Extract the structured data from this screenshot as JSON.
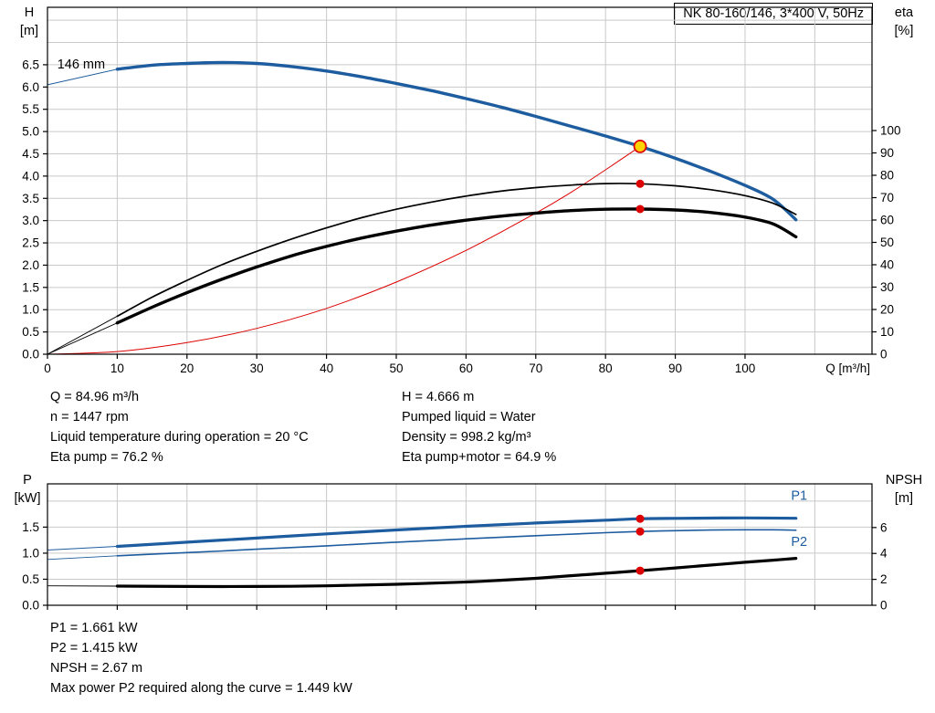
{
  "info_top_left": [
    "Q = 84.96 m³/h",
    "n = 1447 rpm",
    "Liquid temperature during operation = 20 °C",
    "Eta pump = 76.2 %"
  ],
  "info_top_right": [
    "H = 4.666 m",
    "Pumped liquid = Water",
    "Density = 998.2 kg/m³",
    "Eta pump+motor = 64.9 %"
  ],
  "info_bottom": [
    "P1 = 1.661 kW",
    "P2 = 1.415 kW",
    "NPSH = 2.67 m",
    "Max power P2 required along the curve = 1.449 kW"
  ],
  "chart_data": [
    {
      "type": "line",
      "title": "NK 80-160/146, 3*400 V, 50Hz",
      "x": {
        "label": "Q [m³/h]",
        "range": [
          0,
          118.2
        ],
        "ticks": [
          0,
          10,
          20,
          30,
          40,
          50,
          60,
          70,
          80,
          90,
          100
        ],
        "tick_labels": [
          "0",
          "10",
          "20",
          "30",
          "40",
          "50",
          "60",
          "70",
          "80",
          "90",
          "100"
        ],
        "grid": [
          10,
          20,
          30,
          40,
          50,
          60,
          70,
          80,
          90,
          100,
          110
        ]
      },
      "left_axis": {
        "name": "H",
        "unit": "[m]",
        "range": [
          0,
          7.79
        ],
        "ticks": [
          0,
          0.5,
          1,
          1.5,
          2,
          2.5,
          3,
          3.5,
          4,
          4.5,
          5,
          5.5,
          6,
          6.5
        ],
        "tick_labels": [
          "0.0",
          "0.5",
          "1.0",
          "1.5",
          "2.0",
          "2.5",
          "3.0",
          "3.5",
          "4.0",
          "4.5",
          "5.0",
          "5.5",
          "6.0",
          "6.5"
        ],
        "grid": [
          0.5,
          1,
          1.5,
          2,
          2.5,
          3,
          3.5,
          4,
          4.5,
          5,
          5.5,
          6,
          6.5,
          7,
          7.5
        ]
      },
      "right_axis": {
        "name": "eta",
        "unit": "[%]",
        "range": [
          0,
          155.1
        ],
        "ticks": [
          0,
          10,
          20,
          30,
          40,
          50,
          60,
          70,
          80,
          90,
          100
        ],
        "tick_labels": [
          "0",
          "10",
          "20",
          "30",
          "40",
          "50",
          "60",
          "70",
          "80",
          "90",
          "100"
        ]
      },
      "series": [
        {
          "name": "qh-lead",
          "axis": "left",
          "color": "#1d5c9e",
          "width": 1,
          "points": [
            [
              0,
              6.05
            ],
            [
              10,
              6.4
            ]
          ]
        },
        {
          "name": "qh-146mm",
          "axis": "left",
          "color": "#1d5c9e",
          "width": 3.4,
          "points": [
            [
              10,
              6.4
            ],
            [
              15,
              6.49
            ],
            [
              20,
              6.53
            ],
            [
              25,
              6.55
            ],
            [
              30,
              6.53
            ],
            [
              35,
              6.46
            ],
            [
              40,
              6.36
            ],
            [
              45,
              6.23
            ],
            [
              50,
              6.08
            ],
            [
              55,
              5.92
            ],
            [
              60,
              5.74
            ],
            [
              65,
              5.55
            ],
            [
              70,
              5.34
            ],
            [
              75,
              5.12
            ],
            [
              80,
              4.9
            ],
            [
              84.96,
              4.666
            ],
            [
              90,
              4.4
            ],
            [
              95,
              4.11
            ],
            [
              100,
              3.79
            ],
            [
              104,
              3.48
            ],
            [
              107.3,
              3.02
            ]
          ]
        },
        {
          "name": "system-curve",
          "axis": "left",
          "color": "#dd0000",
          "width": 1,
          "points": [
            [
              0,
              0
            ],
            [
              10,
              0.06
            ],
            [
              20,
              0.26
            ],
            [
              30,
              0.58
            ],
            [
              40,
              1.03
            ],
            [
              50,
              1.62
            ],
            [
              60,
              2.33
            ],
            [
              70,
              3.17
            ],
            [
              75,
              3.63
            ],
            [
              80,
              4.14
            ],
            [
              84.96,
              4.666
            ]
          ]
        },
        {
          "name": "eta-pump-lead",
          "axis": "right",
          "color": "#000000",
          "width": 0.9,
          "points": [
            [
              0,
              0
            ],
            [
              10,
              17
            ]
          ]
        },
        {
          "name": "eta-pump",
          "axis": "right",
          "color": "#000000",
          "width": 1.7,
          "points": [
            [
              10,
              17
            ],
            [
              15,
              25.5
            ],
            [
              20,
              33
            ],
            [
              25,
              40
            ],
            [
              30,
              46
            ],
            [
              35,
              51.5
            ],
            [
              40,
              56.5
            ],
            [
              45,
              61
            ],
            [
              50,
              64.8
            ],
            [
              55,
              68
            ],
            [
              60,
              70.7
            ],
            [
              65,
              72.9
            ],
            [
              70,
              74.5
            ],
            [
              75,
              75.6
            ],
            [
              80,
              76.3
            ],
            [
              84.96,
              76.2
            ],
            [
              90,
              75.3
            ],
            [
              95,
              73.6
            ],
            [
              100,
              70.9
            ],
            [
              104,
              67.5
            ],
            [
              107.3,
              62.5
            ]
          ]
        },
        {
          "name": "eta-pump-motor-lead",
          "axis": "right",
          "color": "#000000",
          "width": 0.9,
          "points": [
            [
              0,
              0
            ],
            [
              10,
              14
            ]
          ]
        },
        {
          "name": "eta-pump-motor",
          "axis": "right",
          "color": "#000000",
          "width": 3.4,
          "points": [
            [
              10,
              14
            ],
            [
              15,
              21
            ],
            [
              20,
              27.5
            ],
            [
              25,
              33.5
            ],
            [
              30,
              39
            ],
            [
              35,
              44
            ],
            [
              40,
              48.2
            ],
            [
              45,
              51.9
            ],
            [
              50,
              55
            ],
            [
              55,
              57.7
            ],
            [
              60,
              59.9
            ],
            [
              65,
              61.7
            ],
            [
              70,
              63.1
            ],
            [
              75,
              64.2
            ],
            [
              80,
              64.8
            ],
            [
              84.96,
              64.9
            ],
            [
              90,
              64.5
            ],
            [
              95,
              63.4
            ],
            [
              100,
              61.3
            ],
            [
              104,
              58.3
            ],
            [
              107.3,
              52.5
            ]
          ]
        }
      ],
      "markers": [
        {
          "name": "duty-point",
          "x": 84.96,
          "y": 4.666,
          "axis": "left",
          "r": 6.5,
          "fill": "#ffd400",
          "stroke": "#dd0000"
        },
        {
          "name": "eta-pump-point",
          "x": 84.96,
          "y": 76.2,
          "axis": "right",
          "r": 4.5,
          "fill": "#dd0000"
        },
        {
          "name": "eta-pump-motor-point",
          "x": 84.96,
          "y": 64.9,
          "axis": "right",
          "r": 4.5,
          "fill": "#dd0000"
        }
      ],
      "annotations": [
        {
          "text": "146 mm",
          "x": 1.4,
          "y": 6.42,
          "axis": "left",
          "color": "#000000"
        }
      ]
    },
    {
      "type": "line",
      "title": "",
      "x": {
        "label": "",
        "range": [
          0,
          118.2
        ],
        "ticks": [
          0,
          10,
          20,
          30,
          40,
          50,
          60,
          70,
          80,
          90,
          100,
          110
        ],
        "tick_labels": [],
        "grid": [
          10,
          20,
          30,
          40,
          50,
          60,
          70,
          80,
          90,
          100,
          110
        ]
      },
      "left_axis": {
        "name": "P",
        "unit": "[kW]",
        "range": [
          0,
          2.33
        ],
        "ticks": [
          0,
          0.5,
          1,
          1.5
        ],
        "tick_labels": [
          "0.0",
          "0.5",
          "1.0",
          "1.5"
        ],
        "grid": [
          0.5,
          1,
          1.5,
          2
        ]
      },
      "right_axis": {
        "name": "NPSH",
        "unit": "[m]",
        "range": [
          0,
          9.37
        ],
        "ticks": [
          0,
          2,
          4,
          6
        ],
        "tick_labels": [
          "0",
          "2",
          "4",
          "6"
        ]
      },
      "series": [
        {
          "name": "p1-lead",
          "axis": "left",
          "color": "#1d5c9e",
          "width": 1,
          "points": [
            [
              0,
              1.06
            ],
            [
              10,
              1.13
            ]
          ]
        },
        {
          "name": "p1",
          "axis": "left",
          "color": "#1d5c9e",
          "width": 3.2,
          "points": [
            [
              10,
              1.13
            ],
            [
              20,
              1.21
            ],
            [
              30,
              1.29
            ],
            [
              40,
              1.37
            ],
            [
              50,
              1.445
            ],
            [
              60,
              1.515
            ],
            [
              70,
              1.578
            ],
            [
              80,
              1.632
            ],
            [
              84.96,
              1.661
            ],
            [
              90,
              1.668
            ],
            [
              95,
              1.673
            ],
            [
              100,
              1.676
            ],
            [
              107.3,
              1.67
            ]
          ]
        },
        {
          "name": "p2-lead",
          "axis": "left",
          "color": "#1d5c9e",
          "width": 0.9,
          "points": [
            [
              0,
              0.88
            ],
            [
              10,
              0.95
            ]
          ]
        },
        {
          "name": "p2",
          "axis": "left",
          "color": "#1d5c9e",
          "width": 1.6,
          "points": [
            [
              10,
              0.95
            ],
            [
              20,
              1.01
            ],
            [
              30,
              1.075
            ],
            [
              40,
              1.14
            ],
            [
              50,
              1.21
            ],
            [
              60,
              1.275
            ],
            [
              70,
              1.335
            ],
            [
              80,
              1.392
            ],
            [
              84.96,
              1.415
            ],
            [
              90,
              1.432
            ],
            [
              95,
              1.444
            ],
            [
              100,
              1.449
            ],
            [
              104,
              1.448
            ],
            [
              107.3,
              1.44
            ]
          ]
        },
        {
          "name": "npsh-lead",
          "axis": "right",
          "color": "#000000",
          "width": 0.9,
          "points": [
            [
              0,
              1.5
            ],
            [
              10,
              1.48
            ]
          ]
        },
        {
          "name": "npsh",
          "axis": "right",
          "color": "#000000",
          "width": 3.2,
          "points": [
            [
              10,
              1.48
            ],
            [
              20,
              1.45
            ],
            [
              30,
              1.45
            ],
            [
              40,
              1.5
            ],
            [
              50,
              1.62
            ],
            [
              60,
              1.8
            ],
            [
              65,
              1.93
            ],
            [
              70,
              2.08
            ],
            [
              75,
              2.28
            ],
            [
              80,
              2.47
            ],
            [
              84.96,
              2.67
            ],
            [
              90,
              2.88
            ],
            [
              95,
              3.1
            ],
            [
              100,
              3.32
            ],
            [
              104,
              3.48
            ],
            [
              107.3,
              3.62
            ]
          ]
        }
      ],
      "markers": [
        {
          "name": "p1-point",
          "x": 84.96,
          "y": 1.661,
          "axis": "left",
          "r": 4.5,
          "fill": "#dd0000"
        },
        {
          "name": "p2-point",
          "x": 84.96,
          "y": 1.415,
          "axis": "left",
          "r": 4.5,
          "fill": "#dd0000"
        },
        {
          "name": "npsh-point",
          "x": 84.96,
          "y": 2.67,
          "axis": "right",
          "r": 4.5,
          "fill": "#dd0000"
        }
      ],
      "annotations": [
        {
          "text": "P1",
          "x": 106.6,
          "y": 2.02,
          "axis": "left",
          "color": "#1d5c9e"
        },
        {
          "text": "P2",
          "x": 106.6,
          "y": 1.14,
          "axis": "left",
          "color": "#1d5c9e"
        }
      ]
    }
  ]
}
